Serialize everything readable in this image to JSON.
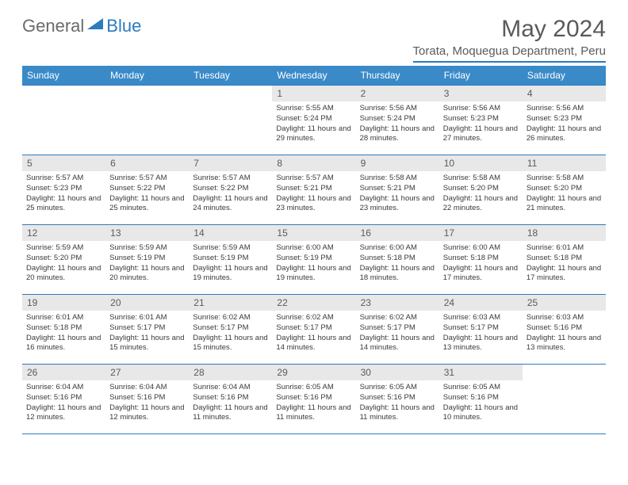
{
  "logo": {
    "general": "General",
    "blue": "Blue"
  },
  "title": "May 2024",
  "location": "Torata, Moquegua Department, Peru",
  "colors": {
    "header_bg": "#3a8ac8",
    "border": "#2b7bbf",
    "daynum_bg": "#e8e8e8",
    "text_dark": "#3a3a3a",
    "text_gray": "#5a5a5a"
  },
  "dayNames": [
    "Sunday",
    "Monday",
    "Tuesday",
    "Wednesday",
    "Thursday",
    "Friday",
    "Saturday"
  ],
  "weeks": [
    [
      null,
      null,
      null,
      {
        "n": "1",
        "sr": "5:55 AM",
        "ss": "5:24 PM",
        "dl": "11 hours and 29 minutes."
      },
      {
        "n": "2",
        "sr": "5:56 AM",
        "ss": "5:24 PM",
        "dl": "11 hours and 28 minutes."
      },
      {
        "n": "3",
        "sr": "5:56 AM",
        "ss": "5:23 PM",
        "dl": "11 hours and 27 minutes."
      },
      {
        "n": "4",
        "sr": "5:56 AM",
        "ss": "5:23 PM",
        "dl": "11 hours and 26 minutes."
      }
    ],
    [
      {
        "n": "5",
        "sr": "5:57 AM",
        "ss": "5:23 PM",
        "dl": "11 hours and 25 minutes."
      },
      {
        "n": "6",
        "sr": "5:57 AM",
        "ss": "5:22 PM",
        "dl": "11 hours and 25 minutes."
      },
      {
        "n": "7",
        "sr": "5:57 AM",
        "ss": "5:22 PM",
        "dl": "11 hours and 24 minutes."
      },
      {
        "n": "8",
        "sr": "5:57 AM",
        "ss": "5:21 PM",
        "dl": "11 hours and 23 minutes."
      },
      {
        "n": "9",
        "sr": "5:58 AM",
        "ss": "5:21 PM",
        "dl": "11 hours and 23 minutes."
      },
      {
        "n": "10",
        "sr": "5:58 AM",
        "ss": "5:20 PM",
        "dl": "11 hours and 22 minutes."
      },
      {
        "n": "11",
        "sr": "5:58 AM",
        "ss": "5:20 PM",
        "dl": "11 hours and 21 minutes."
      }
    ],
    [
      {
        "n": "12",
        "sr": "5:59 AM",
        "ss": "5:20 PM",
        "dl": "11 hours and 20 minutes."
      },
      {
        "n": "13",
        "sr": "5:59 AM",
        "ss": "5:19 PM",
        "dl": "11 hours and 20 minutes."
      },
      {
        "n": "14",
        "sr": "5:59 AM",
        "ss": "5:19 PM",
        "dl": "11 hours and 19 minutes."
      },
      {
        "n": "15",
        "sr": "6:00 AM",
        "ss": "5:19 PM",
        "dl": "11 hours and 19 minutes."
      },
      {
        "n": "16",
        "sr": "6:00 AM",
        "ss": "5:18 PM",
        "dl": "11 hours and 18 minutes."
      },
      {
        "n": "17",
        "sr": "6:00 AM",
        "ss": "5:18 PM",
        "dl": "11 hours and 17 minutes."
      },
      {
        "n": "18",
        "sr": "6:01 AM",
        "ss": "5:18 PM",
        "dl": "11 hours and 17 minutes."
      }
    ],
    [
      {
        "n": "19",
        "sr": "6:01 AM",
        "ss": "5:18 PM",
        "dl": "11 hours and 16 minutes."
      },
      {
        "n": "20",
        "sr": "6:01 AM",
        "ss": "5:17 PM",
        "dl": "11 hours and 15 minutes."
      },
      {
        "n": "21",
        "sr": "6:02 AM",
        "ss": "5:17 PM",
        "dl": "11 hours and 15 minutes."
      },
      {
        "n": "22",
        "sr": "6:02 AM",
        "ss": "5:17 PM",
        "dl": "11 hours and 14 minutes."
      },
      {
        "n": "23",
        "sr": "6:02 AM",
        "ss": "5:17 PM",
        "dl": "11 hours and 14 minutes."
      },
      {
        "n": "24",
        "sr": "6:03 AM",
        "ss": "5:17 PM",
        "dl": "11 hours and 13 minutes."
      },
      {
        "n": "25",
        "sr": "6:03 AM",
        "ss": "5:16 PM",
        "dl": "11 hours and 13 minutes."
      }
    ],
    [
      {
        "n": "26",
        "sr": "6:04 AM",
        "ss": "5:16 PM",
        "dl": "11 hours and 12 minutes."
      },
      {
        "n": "27",
        "sr": "6:04 AM",
        "ss": "5:16 PM",
        "dl": "11 hours and 12 minutes."
      },
      {
        "n": "28",
        "sr": "6:04 AM",
        "ss": "5:16 PM",
        "dl": "11 hours and 11 minutes."
      },
      {
        "n": "29",
        "sr": "6:05 AM",
        "ss": "5:16 PM",
        "dl": "11 hours and 11 minutes."
      },
      {
        "n": "30",
        "sr": "6:05 AM",
        "ss": "5:16 PM",
        "dl": "11 hours and 11 minutes."
      },
      {
        "n": "31",
        "sr": "6:05 AM",
        "ss": "5:16 PM",
        "dl": "11 hours and 10 minutes."
      },
      null
    ]
  ],
  "labels": {
    "sunrise": "Sunrise:",
    "sunset": "Sunset:",
    "daylight": "Daylight:"
  }
}
